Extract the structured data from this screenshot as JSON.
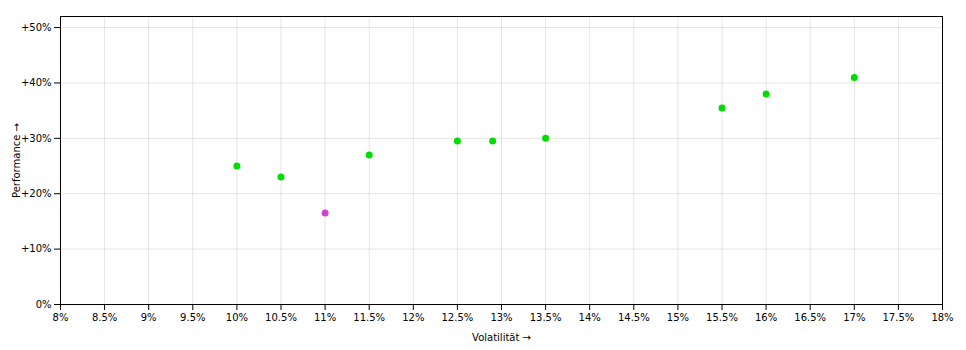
{
  "chart_data": {
    "type": "scatter",
    "x": [
      10.0,
      10.5,
      11.0,
      11.5,
      12.5,
      12.9,
      13.5,
      15.5,
      16.0,
      17.0
    ],
    "values": [
      25.0,
      23.0,
      16.5,
      27.0,
      29.5,
      29.5,
      30.0,
      35.5,
      38.0,
      41.0
    ],
    "colors": [
      "#00dd00",
      "#00dd00",
      "#cc44cc",
      "#00dd00",
      "#00dd00",
      "#00dd00",
      "#00dd00",
      "#00dd00",
      "#00dd00",
      "#00dd00"
    ],
    "xlim": [
      8.0,
      18.0
    ],
    "ylim": [
      0.0,
      52.0
    ],
    "xticks": [
      {
        "value": 8,
        "label": "8%"
      },
      {
        "value": 8.5,
        "label": "8.5%"
      },
      {
        "value": 9,
        "label": "9%"
      },
      {
        "value": 9.5,
        "label": "9.5%"
      },
      {
        "value": 10,
        "label": "10%"
      },
      {
        "value": 10.5,
        "label": "10.5%"
      },
      {
        "value": 11,
        "label": "11%"
      },
      {
        "value": 11.5,
        "label": "11.5%"
      },
      {
        "value": 12,
        "label": "12%"
      },
      {
        "value": 12.5,
        "label": "12.5%"
      },
      {
        "value": 13,
        "label": "13%"
      },
      {
        "value": 13.5,
        "label": "13.5%"
      },
      {
        "value": 14,
        "label": "14%"
      },
      {
        "value": 14.5,
        "label": "14.5%"
      },
      {
        "value": 15,
        "label": "15%"
      },
      {
        "value": 15.5,
        "label": "15.5%"
      },
      {
        "value": 16,
        "label": "16%"
      },
      {
        "value": 16.5,
        "label": "16.5%"
      },
      {
        "value": 17,
        "label": "17%"
      },
      {
        "value": 17.5,
        "label": "17.5%"
      },
      {
        "value": 18,
        "label": "18%"
      }
    ],
    "yticks": [
      {
        "value": 0,
        "label": "0%"
      },
      {
        "value": 10,
        "label": "+10%"
      },
      {
        "value": 20,
        "label": "+20%"
      },
      {
        "value": 30,
        "label": "+30%"
      },
      {
        "value": 40,
        "label": "+40%"
      },
      {
        "value": 50,
        "label": "+50%"
      }
    ],
    "xlabel": "Volatilität",
    "ylabel": "Performance",
    "grid": true
  }
}
